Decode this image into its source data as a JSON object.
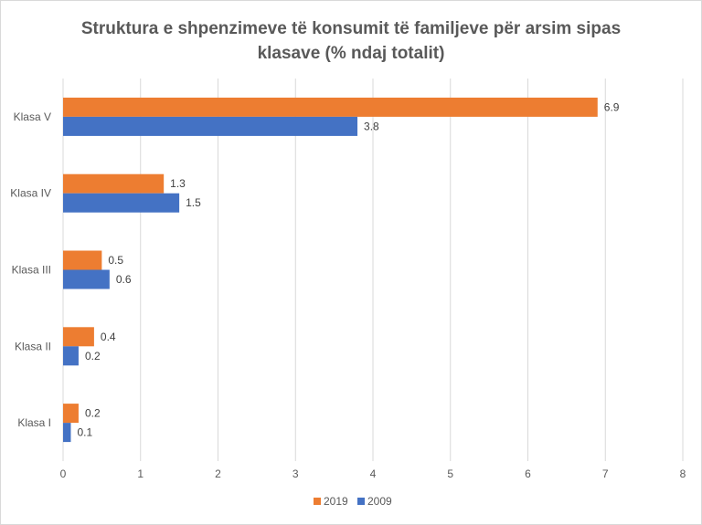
{
  "chart_data": {
    "type": "bar",
    "orientation": "horizontal",
    "title": "Struktura e shpenzimeve të konsumit të familjeve për arsim sipas klasave (% ndaj totalit)",
    "title_lines": [
      "Struktura e shpenzimeve të konsumit të familjeve për arsim sipas",
      "klasave (% ndaj totalit)"
    ],
    "categories": [
      "Klasa V",
      "Klasa IV",
      "Klasa III",
      "Klasa II",
      "Klasa I"
    ],
    "series": [
      {
        "name": "2019",
        "color": "#ED7D31",
        "values": [
          6.9,
          1.3,
          0.5,
          0.4,
          0.2
        ]
      },
      {
        "name": "2009",
        "color": "#4472C4",
        "values": [
          3.8,
          1.5,
          0.6,
          0.2,
          0.1
        ]
      }
    ],
    "xlim": [
      0,
      8
    ],
    "xticks": [
      "0",
      "1",
      "2",
      "3",
      "4",
      "5",
      "6",
      "7",
      "8"
    ],
    "grid": true,
    "legend": "bottom",
    "xlabel": "",
    "ylabel": ""
  }
}
